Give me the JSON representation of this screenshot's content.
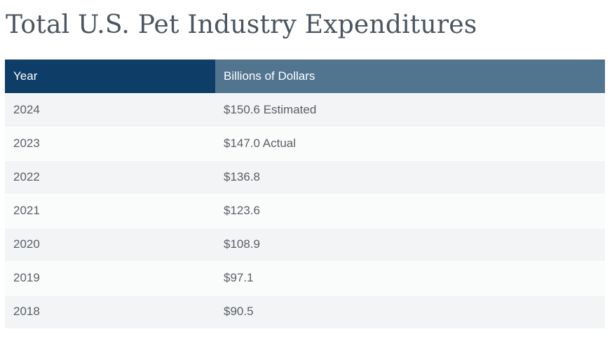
{
  "title": "Total U.S. Pet Industry Expenditures",
  "table": {
    "headers": [
      "Year",
      "Billions of Dollars"
    ],
    "rows": [
      [
        "2024",
        "$150.6 Estimated"
      ],
      [
        "2023",
        "$147.0 Actual"
      ],
      [
        "2022",
        "$136.8"
      ],
      [
        "2021",
        "$123.6"
      ],
      [
        "2020",
        "$108.9"
      ],
      [
        "2019",
        "$97.1"
      ],
      [
        "2018",
        "$90.5"
      ]
    ]
  },
  "colors": {
    "header_year_bg": "#0e3d67",
    "header_value_bg": "#52758f",
    "row_odd_bg": "#f2f4f5",
    "row_even_bg": "#fafbfb",
    "title_text": "#4a5560",
    "cell_text": "#5a5f66"
  }
}
